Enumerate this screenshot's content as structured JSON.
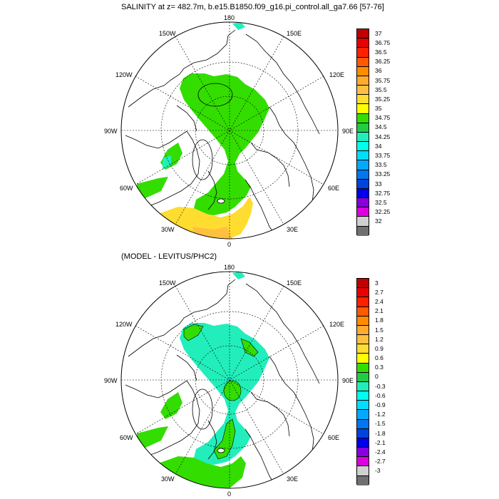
{
  "top_panel": {
    "title": "SALINITY at z= 482.7m, b.e15.B1850.f09_g16.pi_control.all_ga7.66 [57-76]",
    "longitude_labels": {
      "top": "180",
      "upper_left": "150W",
      "upper_right": "150E",
      "mid_upper_left": "120W",
      "mid_upper_right": "120E",
      "left": "90W",
      "right": "90E",
      "mid_lower_left": "60W",
      "mid_lower_right": "60E",
      "lower_left": "30W",
      "lower_right": "30E",
      "bottom": "0"
    },
    "colorbar": {
      "labels": [
        "37",
        "36.75",
        "36.5",
        "36.25",
        "36",
        "35.75",
        "35.5",
        "35.25",
        "35",
        "34.75",
        "34.5",
        "34.25",
        "34",
        "33.75",
        "33.5",
        "33.25",
        "33",
        "32.75",
        "32.5",
        "32.25",
        "32"
      ],
      "colors": [
        "#c00000",
        "#e80000",
        "#ff2000",
        "#ff5a00",
        "#ff8c00",
        "#ffaa30",
        "#ffc040",
        "#ffdd30",
        "#ffff00",
        "#33dd00",
        "#22cc44",
        "#22eebb",
        "#00ffee",
        "#00ddff",
        "#00aaff",
        "#0077ee",
        "#0044dd",
        "#0000ee",
        "#8800dd",
        "#dd00dd",
        "#d0d0d0",
        "#707070"
      ]
    }
  },
  "bottom_panel": {
    "title": "(MODEL - LEVITUS/PHC2)",
    "longitude_labels": {
      "top": "180",
      "upper_left": "150W",
      "upper_right": "150E",
      "mid_upper_left": "120W",
      "mid_upper_right": "120E",
      "left": "90W",
      "right": "90E",
      "mid_lower_left": "60W",
      "mid_lower_right": "60E",
      "lower_left": "30W",
      "lower_right": "30E",
      "bottom": "0"
    },
    "colorbar": {
      "labels": [
        "3",
        "2.7",
        "2.4",
        "2.1",
        "1.8",
        "1.5",
        "1.2",
        "0.9",
        "0.6",
        "0.3",
        "0",
        "-0.3",
        "-0.6",
        "-0.9",
        "-1.2",
        "-1.5",
        "-1.8",
        "-2.1",
        "-2.4",
        "-2.7",
        "-3"
      ],
      "colors": [
        "#c00000",
        "#e80000",
        "#ff2000",
        "#ff5a00",
        "#ff8c00",
        "#ffaa30",
        "#ffc040",
        "#ffdd30",
        "#ffff00",
        "#33dd00",
        "#22cc44",
        "#22eebb",
        "#00ffee",
        "#00ddff",
        "#00aaff",
        "#0077ee",
        "#0044dd",
        "#0000ee",
        "#8800dd",
        "#dd00dd",
        "#d0d0d0",
        "#707070"
      ]
    }
  }
}
